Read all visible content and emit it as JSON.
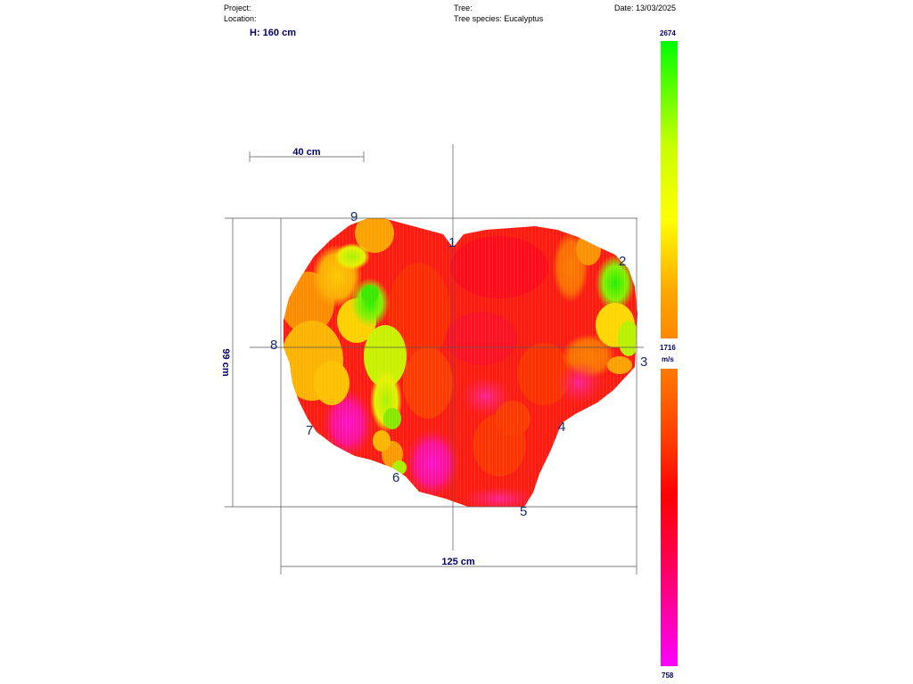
{
  "header": {
    "project": "Project:",
    "location": "Location:",
    "tree": "Tree:",
    "species": "Tree species: Eucalyptus",
    "date": "Date: 13/03/2025"
  },
  "height_label": "H: 160 cm",
  "scale_bar_label": "40 cm",
  "width_label": "125 cm",
  "depth_label": "99 cm",
  "sensors": [
    "1",
    "2",
    "3",
    "4",
    "5",
    "6",
    "7",
    "8",
    "9"
  ],
  "color_scale": {
    "max": "2674",
    "mid": "1716",
    "unit": "m/s",
    "min": "758",
    "upper_colors": [
      "#00ff00",
      "#d4ff00",
      "#ffff00",
      "#ffa500",
      "#ff8a00"
    ],
    "lower_colors": [
      "#ff7a00",
      "#ff3a00",
      "#ff0000",
      "#ff0040",
      "#ff00ff"
    ]
  }
}
